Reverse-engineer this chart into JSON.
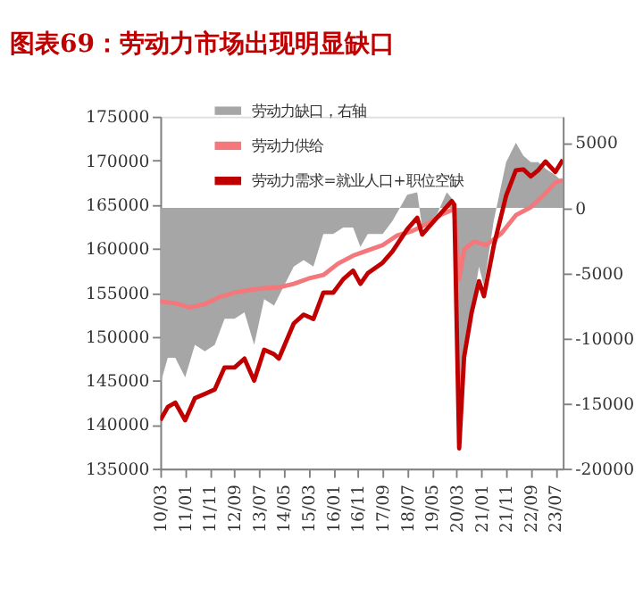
{
  "chart_data": {
    "type": "line",
    "title": "图表69：劳动力市场出现明显缺口",
    "legend": "top left",
    "grid": false,
    "marker": "none",
    "line_style": "solid",
    "xlim": [
      "2010-03",
      "2023-10"
    ],
    "xticks": [
      {
        "value": "2010-03",
        "label": "10/03"
      },
      {
        "value": "2011-01",
        "label": "11/01"
      },
      {
        "value": "2011-11",
        "label": "11/11"
      },
      {
        "value": "2012-09",
        "label": "12/09"
      },
      {
        "value": "2013-07",
        "label": "13/07"
      },
      {
        "value": "2014-05",
        "label": "14/05"
      },
      {
        "value": "2015-03",
        "label": "15/03"
      },
      {
        "value": "2016-01",
        "label": "16/01"
      },
      {
        "value": "2016-11",
        "label": "16/11"
      },
      {
        "value": "2017-09",
        "label": "17/09"
      },
      {
        "value": "2018-07",
        "label": "18/07"
      },
      {
        "value": "2019-05",
        "label": "19/05"
      },
      {
        "value": "2020-03",
        "label": "20/03"
      },
      {
        "value": "2021-01",
        "label": "21/01"
      },
      {
        "value": "2021-11",
        "label": "21/11"
      },
      {
        "value": "2022-09",
        "label": "22/09"
      },
      {
        "value": "2023-07",
        "label": "23/07"
      }
    ],
    "ylim": [
      135000,
      175000
    ],
    "yticks": [
      135000,
      140000,
      145000,
      150000,
      155000,
      160000,
      165000,
      170000,
      175000
    ],
    "y2lim": [
      -20000,
      7000
    ],
    "y2ticks": [
      -20000,
      -15000,
      -10000,
      -5000,
      0,
      5000
    ],
    "series": [
      {
        "name": "劳动力缺口，右轴",
        "type": "area",
        "axis": "y2",
        "color": "#a6a6a6",
        "x": [
          "2010-03",
          "2010-06",
          "2010-09",
          "2011-01",
          "2011-05",
          "2011-09",
          "2012-01",
          "2012-05",
          "2012-09",
          "2013-01",
          "2013-05",
          "2013-09",
          "2014-01",
          "2014-05",
          "2014-09",
          "2015-01",
          "2015-05",
          "2015-09",
          "2016-01",
          "2016-05",
          "2016-09",
          "2016-12",
          "2017-03",
          "2017-09",
          "2018-01",
          "2018-07",
          "2018-11",
          "2019-01",
          "2019-07",
          "2019-11",
          "2020-02",
          "2020-04",
          "2020-06",
          "2020-09",
          "2020-12",
          "2021-02",
          "2021-06",
          "2021-11",
          "2022-03",
          "2022-06",
          "2022-09",
          "2022-12",
          "2023-03",
          "2023-07",
          "2023-10"
        ],
        "values": [
          -13500,
          -11500,
          -11500,
          -13000,
          -10500,
          -11000,
          -10500,
          -8500,
          -8500,
          -8000,
          -10500,
          -7000,
          -7500,
          -6000,
          -4500,
          -4000,
          -4500,
          -2000,
          -2000,
          -1500,
          -1500,
          -3000,
          -2000,
          -2000,
          -1000,
          1000,
          1200,
          -1500,
          -500,
          1200,
          500,
          -18500,
          -12000,
          -8000,
          -4500,
          -6000,
          -1000,
          3500,
          5000,
          4000,
          3500,
          3500,
          3000,
          2500,
          2000
        ]
      },
      {
        "name": "劳动力供给",
        "color": "#f4777b",
        "x": [
          "2010-03",
          "2010-09",
          "2011-03",
          "2011-09",
          "2012-03",
          "2012-09",
          "2013-03",
          "2013-09",
          "2014-03",
          "2014-09",
          "2015-03",
          "2015-09",
          "2016-03",
          "2016-09",
          "2017-03",
          "2017-09",
          "2018-03",
          "2018-09",
          "2019-03",
          "2019-09",
          "2020-02",
          "2020-04",
          "2020-06",
          "2020-10",
          "2021-03",
          "2021-09",
          "2022-03",
          "2022-09",
          "2023-03",
          "2023-07",
          "2023-10"
        ],
        "values": [
          154000,
          153800,
          153300,
          153700,
          154500,
          155000,
          155300,
          155500,
          155600,
          156000,
          156600,
          157000,
          158300,
          159200,
          159800,
          160400,
          161500,
          162000,
          162800,
          163900,
          164500,
          156500,
          159900,
          160800,
          160400,
          161700,
          163800,
          164700,
          166300,
          167500,
          167800
        ]
      },
      {
        "name": "劳动力需求=就业人口+职位空缺",
        "color": "#c00000",
        "x": [
          "2010-03",
          "2010-06",
          "2010-09",
          "2011-01",
          "2011-05",
          "2011-09",
          "2012-01",
          "2012-05",
          "2012-09",
          "2013-01",
          "2013-05",
          "2013-09",
          "2014-01",
          "2014-03",
          "2014-09",
          "2015-01",
          "2015-05",
          "2015-09",
          "2016-01",
          "2016-05",
          "2016-09",
          "2016-12",
          "2017-03",
          "2017-09",
          "2018-01",
          "2018-07",
          "2018-11",
          "2019-01",
          "2019-07",
          "2020-01",
          "2020-02",
          "2020-04",
          "2020-06",
          "2020-09",
          "2020-12",
          "2021-02",
          "2021-06",
          "2021-11",
          "2022-03",
          "2022-06",
          "2022-09",
          "2022-12",
          "2023-03",
          "2023-07",
          "2023-10"
        ],
        "values": [
          140500,
          142000,
          142500,
          140500,
          143000,
          143500,
          144000,
          146500,
          146500,
          147500,
          145000,
          148500,
          148000,
          147500,
          151500,
          152500,
          152000,
          155000,
          155000,
          156500,
          157500,
          156000,
          157200,
          158400,
          159700,
          162200,
          163500,
          161600,
          163500,
          165400,
          165000,
          137300,
          147700,
          152700,
          156300,
          154600,
          160300,
          166000,
          168900,
          169000,
          168200,
          168900,
          169900,
          168700,
          170100
        ]
      }
    ]
  }
}
